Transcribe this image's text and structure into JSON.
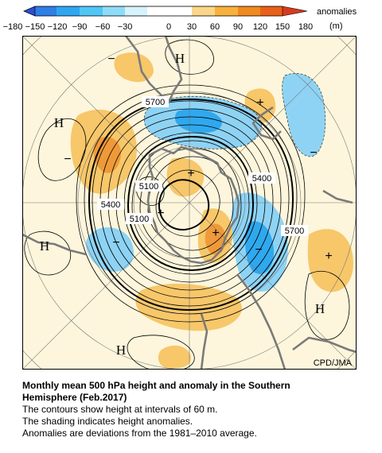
{
  "colorbar": {
    "unit_label": "anomalies",
    "unit": "(m)",
    "ticks": [
      "−180",
      "−150",
      "−120",
      "−90",
      "−60",
      "−30",
      "0",
      "30",
      "60",
      "90",
      "120",
      "150",
      "180"
    ],
    "colors": [
      "#2a4fd6",
      "#2f7fe6",
      "#2fa6f2",
      "#4fc6f6",
      "#8fdcf8",
      "#d6f2fb",
      "#ffffff",
      "#ffffff",
      "#fbd68a",
      "#f7b13c",
      "#f08a1e",
      "#e8601a",
      "#d93a1e"
    ]
  },
  "map": {
    "credit": "CPD/JMA",
    "high_labels": [
      "H",
      "H",
      "H",
      "H",
      "H"
    ],
    "contour_labels": [
      "5700",
      "5400",
      "5100",
      "5400",
      "5100",
      "5400",
      "5700"
    ],
    "signs": [
      "+",
      "+",
      "+",
      "+",
      "+",
      "−",
      "−",
      "−",
      "−",
      "−"
    ],
    "colors": {
      "background": "#fdf6dc",
      "positive": "#f7c76a",
      "positive_strong": "#ee9a3a",
      "negative": "#8ed3f4",
      "negative_strong": "#2fa8ee",
      "coast": "#7a7a7a"
    }
  },
  "caption": {
    "title_line1": "Monthly mean 500 hPa height and anomaly in the Southern",
    "title_line2": "Hemisphere (Feb.2017)",
    "line1": "The contours show height at intervals of 60 m.",
    "line2": "The shading indicates height anomalies.",
    "line3": "Anomalies are deviations from the 1981–2010 average."
  }
}
